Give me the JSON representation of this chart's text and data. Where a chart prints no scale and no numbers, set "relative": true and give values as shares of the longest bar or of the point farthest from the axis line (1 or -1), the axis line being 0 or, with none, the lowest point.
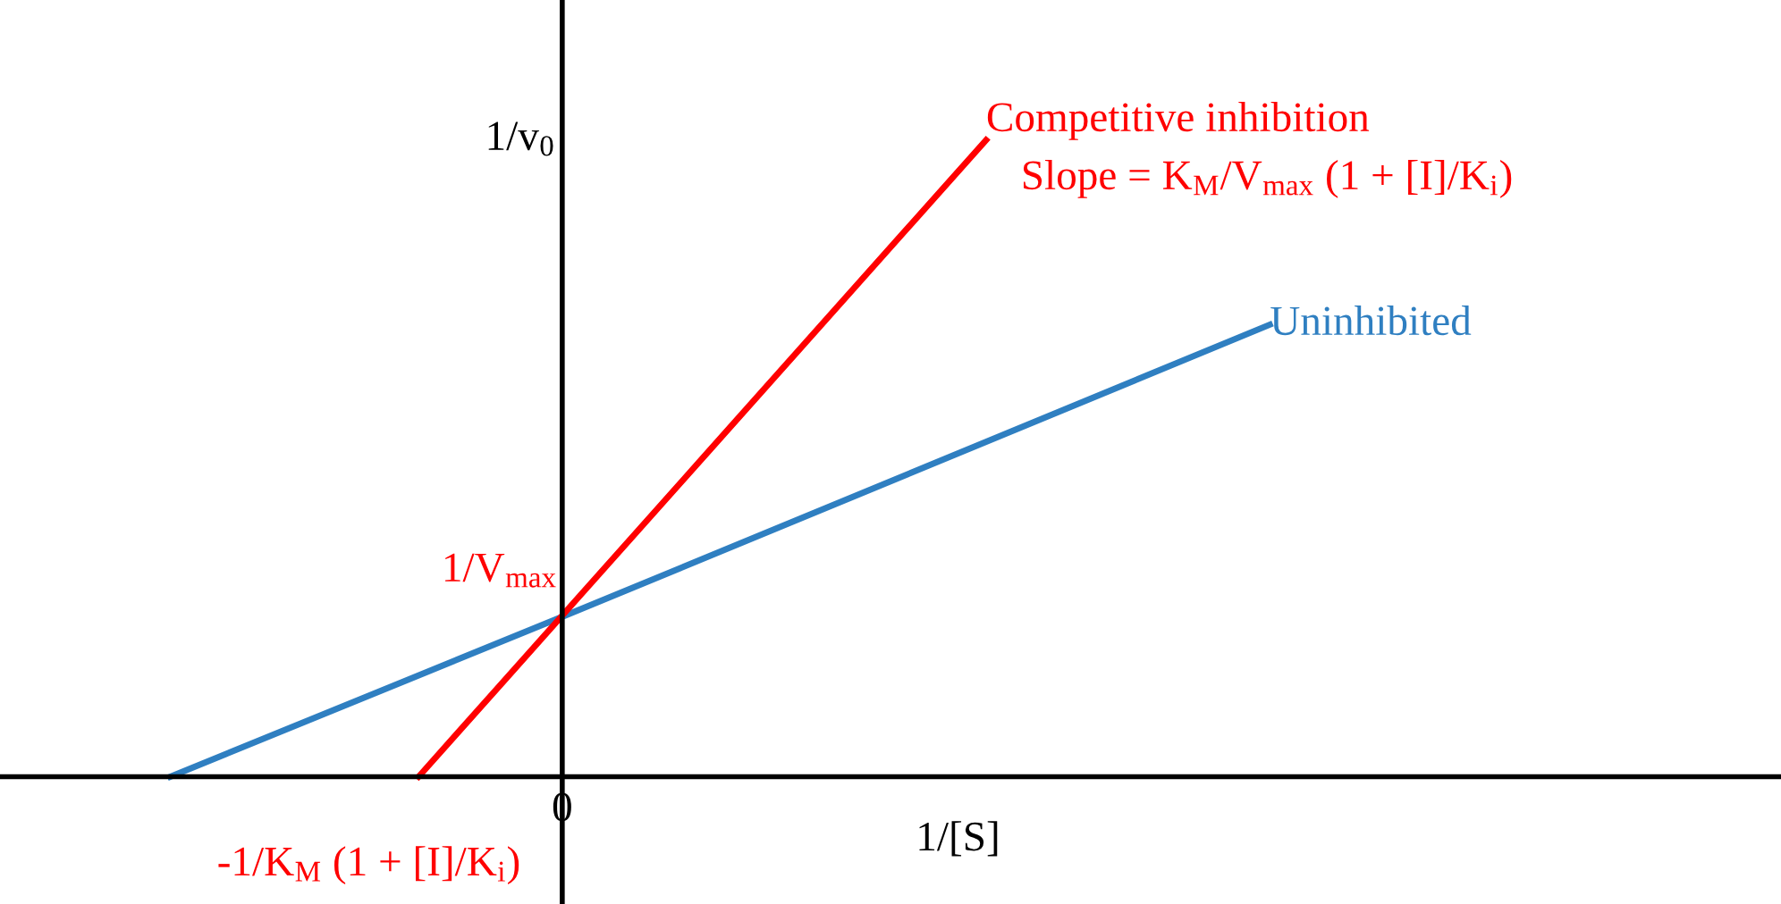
{
  "chart_data": {
    "type": "line",
    "relative": true,
    "xlabel": "1/[S]",
    "ylabel": "1/v$_{0}$",
    "legend": false,
    "marker": "none",
    "line_style": "solid",
    "categories": [
      null,
      null,
      null,
      null,
      null,
      null,
      null,
      null,
      null,
      null,
      null,
      null,
      null,
      null,
      null,
      null,
      null,
      null,
      null,
      null,
      null,
      null,
      null,
      null,
      null,
      null,
      null,
      null,
      null,
      null,
      null,
      null
    ],
    "series": [
      {
        "name": "Uninhibited",
        "color": "#2f7fc1",
        "values": [
          0,
          null,
          null,
          null,
          null,
          null,
          null,
          null,
          null,
          null,
          null,
          0.25,
          null,
          null,
          null,
          null,
          null,
          null,
          null,
          null,
          null,
          null,
          null,
          null,
          null,
          null,
          null,
          null,
          null,
          null,
          null,
          0.71
        ]
      },
      {
        "name": "Competitive inhibition",
        "color": "#ff0000",
        "values": [
          null,
          null,
          null,
          null,
          null,
          null,
          null,
          0,
          null,
          null,
          null,
          0.25,
          null,
          null,
          null,
          null,
          null,
          null,
          null,
          null,
          null,
          null,
          null,
          1,
          null,
          null,
          null,
          null,
          null,
          null,
          null,
          null
        ]
      }
    ],
    "annotations": [
      "Slope = K$_{M}$/V$_{max}$ (1 + [I]/K$_{i}$)",
      "1/V$_{max}$",
      "-1/K$_{M}$ (1 + [I]/K$_{i}$)",
      "0"
    ]
  }
}
